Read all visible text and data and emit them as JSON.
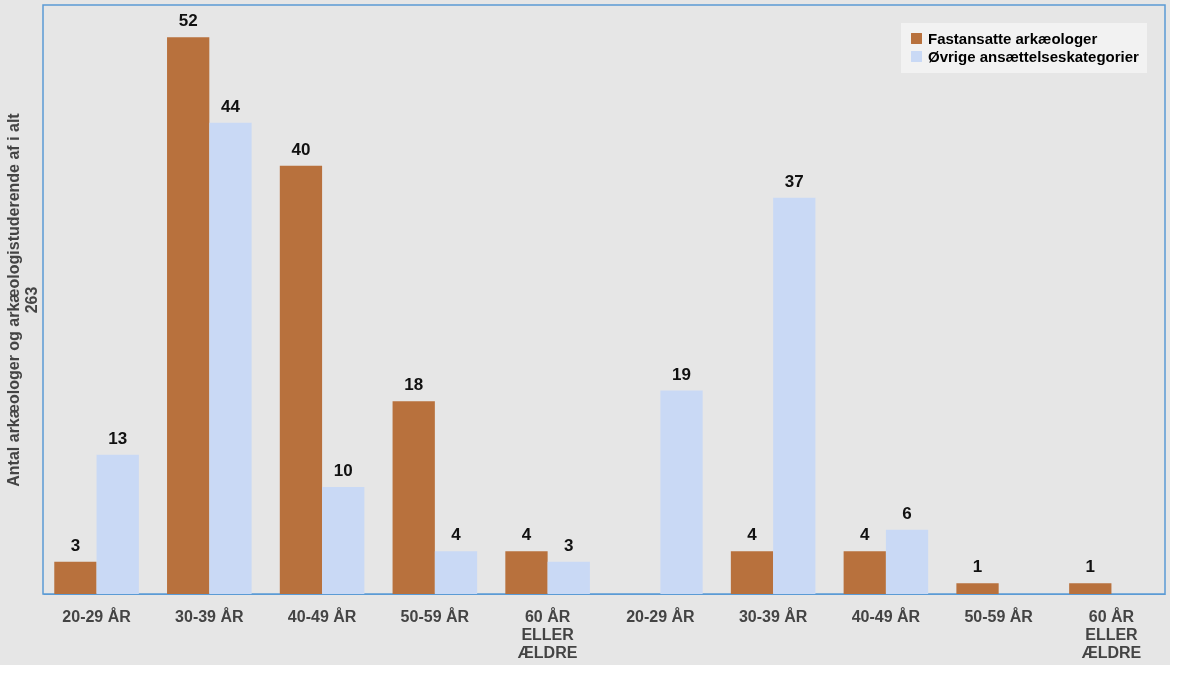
{
  "chart_data": {
    "type": "bar",
    "ylabel": "Antal arkæologer og arkæologistuderende af i alt 263",
    "categories": [
      "20-29 ÅR",
      "30-39 ÅR",
      "40-49 ÅR",
      "50-59 ÅR",
      "60 ÅR ELLER ÆLDRE",
      "20-29 ÅR",
      "30-39 ÅR",
      "40-49 ÅR",
      "50-59 ÅR",
      "60 ÅR ELLER ÆLDRE"
    ],
    "series": [
      {
        "name": "Fastansatte arkæologer",
        "color": "#b8713d",
        "values": [
          3,
          52,
          40,
          18,
          4,
          null,
          4,
          4,
          1,
          1
        ]
      },
      {
        "name": "Øvrige ansættelseskategorier",
        "color": "#c9d9f5",
        "values": [
          13,
          44,
          10,
          4,
          3,
          19,
          37,
          6,
          null,
          null
        ]
      }
    ],
    "data_labels": true,
    "legend": "top right",
    "grid": false
  }
}
